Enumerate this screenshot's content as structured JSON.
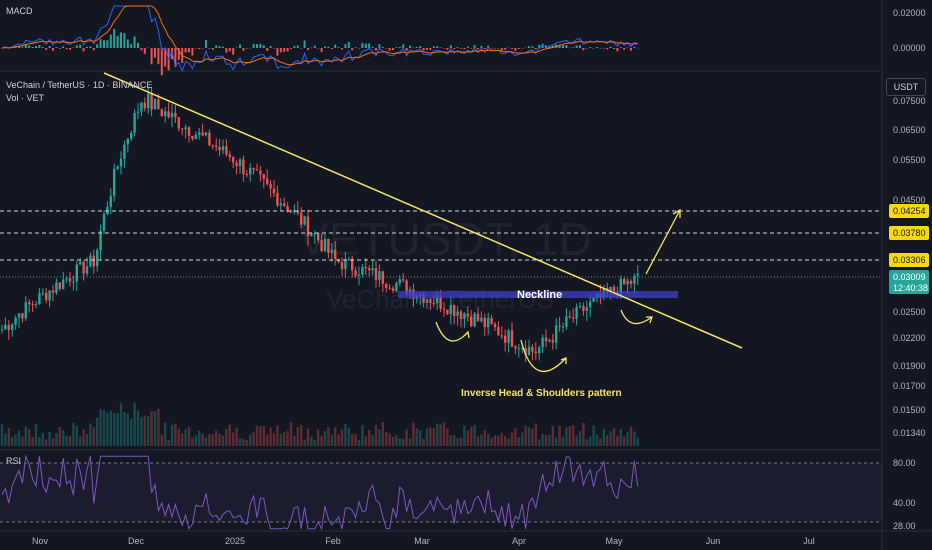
{
  "header": {
    "macd_title": "MACD",
    "symbol_line": "VeChain / TetherUS · 1D · BINANCE",
    "volume_label": "Vol · VET",
    "rsi_title": "RSI",
    "currency_unit": "USDT",
    "watermark_ticker": "VETUSDT, 1D",
    "watermark_name": "VeChain / TetherUS"
  },
  "annotations": {
    "neckline": "Neckline",
    "pattern": "Inverse Head & Shoulders pattern"
  },
  "colors": {
    "background": "#131722",
    "bull": "#26a69a",
    "bear": "#ef5350",
    "trendline": "#f5e663",
    "annotation": "#f5e663",
    "neckline_band": "#3f3fc8",
    "rsi_line": "#7e57c2",
    "macd_line": "#2962ff",
    "signal_line": "#ff6d00"
  },
  "macd_axis": [
    "0.02000",
    "0.00000"
  ],
  "price_axis": [
    "0.07500",
    "0.06500",
    "0.05500",
    "0.04500",
    "0.02500",
    "0.02200",
    "0.01900",
    "0.01700",
    "0.01500",
    "0.01340"
  ],
  "rsi_axis": [
    "80.00",
    "40.00",
    "28.00"
  ],
  "levels": [
    {
      "value": "0.04254",
      "label": "0.04254"
    },
    {
      "value": "0.03780",
      "label": "0.03780"
    },
    {
      "value": "0.03306",
      "label": "0.03306"
    }
  ],
  "current_price": {
    "value": "0.03009",
    "countdown": "12:40:38"
  },
  "time_axis": [
    "Nov",
    "Dec",
    "2025",
    "Feb",
    "Mar",
    "Apr",
    "May",
    "Jun",
    "Jul"
  ],
  "chart_data": {
    "type": "candlestick",
    "interval": "1D",
    "symbol": "VETUSDT",
    "approx_closes": [
      {
        "date": "Nov",
        "close": 0.0228
      },
      {
        "date": "mid-Nov",
        "close": 0.033
      },
      {
        "date": "Dec",
        "close": 0.076
      },
      {
        "date": "2025",
        "close": 0.054
      },
      {
        "date": "Feb",
        "close": 0.033
      },
      {
        "date": "Mar",
        "close": 0.027
      },
      {
        "date": "Apr",
        "close": 0.0205
      },
      {
        "date": "May",
        "close": 0.027
      },
      {
        "date": "latest",
        "close": 0.03009
      }
    ],
    "levels": [
      0.04254,
      0.0378,
      0.03306
    ],
    "neckline": 0.0275
  }
}
